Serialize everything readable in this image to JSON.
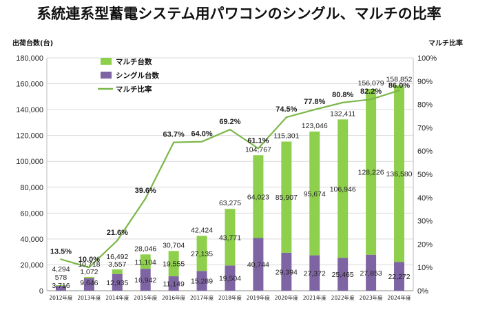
{
  "title": "系統連系型蓄電システム用パワコンのシングル、マルチの比率",
  "chart_data": {
    "type": "bar",
    "stacked": true,
    "title": "系統連系型蓄電システム用パワコンのシングル、マルチの比率",
    "ylabel": "出荷台数(台)",
    "y2label": "マルチ比率",
    "ylim": [
      0,
      180000
    ],
    "y2lim": [
      0,
      100
    ],
    "yticks": [
      "0",
      "20,000",
      "40,000",
      "60,000",
      "80,000",
      "100,000",
      "120,000",
      "140,000",
      "160,000",
      "180,000"
    ],
    "y2ticks": [
      "0%",
      "10%",
      "20%",
      "30%",
      "40%",
      "50%",
      "60%",
      "70%",
      "80%",
      "90%",
      "100%"
    ],
    "grid": true,
    "legend": "top-left",
    "categories": [
      "2012年度",
      "2013年度",
      "2014年度",
      "2015年度",
      "2016年度",
      "2017年度",
      "2018年度",
      "2019年度",
      "2020年度",
      "2021年度",
      "2022年度",
      "2023年度",
      "2024年度"
    ],
    "series": [
      {
        "name": "シングル台数",
        "color": "#7f64a4",
        "values": [
          3716,
          9646,
          12935,
          16942,
          11149,
          15289,
          19504,
          40744,
          29394,
          27372,
          25465,
          27853,
          22272
        ],
        "labels": [
          "3,716",
          "9,646",
          "12,935",
          "16,942",
          "11,149",
          "15,289",
          "19,504",
          "40,744",
          "29,394",
          "27,372",
          "25,465",
          "27,853",
          "22,272"
        ]
      },
      {
        "name": "マルチ台数",
        "color": "#8ecf4b",
        "values": [
          578,
          1072,
          3557,
          11104,
          19555,
          27135,
          43771,
          64023,
          85907,
          95674,
          106946,
          128226,
          136580
        ],
        "labels": [
          "578",
          "1,072",
          "3,557",
          "11,104",
          "19,555",
          "27,135",
          "43,771",
          "64,023",
          "85,907",
          "95,674",
          "106,946",
          "128,226",
          "136,580"
        ]
      },
      {
        "name": "マルチ比率",
        "type": "line",
        "axis": "right",
        "color": "#7ab648",
        "values": [
          13.5,
          10.0,
          21.6,
          39.6,
          63.7,
          64.0,
          69.2,
          61.1,
          74.5,
          77.8,
          80.8,
          82.2,
          86.0
        ],
        "labels": [
          "13.5%",
          "10.0%",
          "21.6%",
          "39.6%",
          "63.7%",
          "64.0%",
          "69.2%",
          "61.1%",
          "74.5%",
          "77.8%",
          "80.8%",
          "82.2%",
          "86.0%"
        ]
      }
    ],
    "totals": [
      4294,
      10718,
      16492,
      28046,
      30704,
      42424,
      63275,
      104767,
      115301,
      123046,
      132411,
      156079,
      158852
    ],
    "total_labels": [
      "4,294",
      "10,718",
      "16,492",
      "28,046",
      "30,704",
      "42,424",
      "63,275",
      "104,767",
      "115,301",
      "123,046",
      "132,411",
      "156,079",
      "158,852"
    ]
  }
}
